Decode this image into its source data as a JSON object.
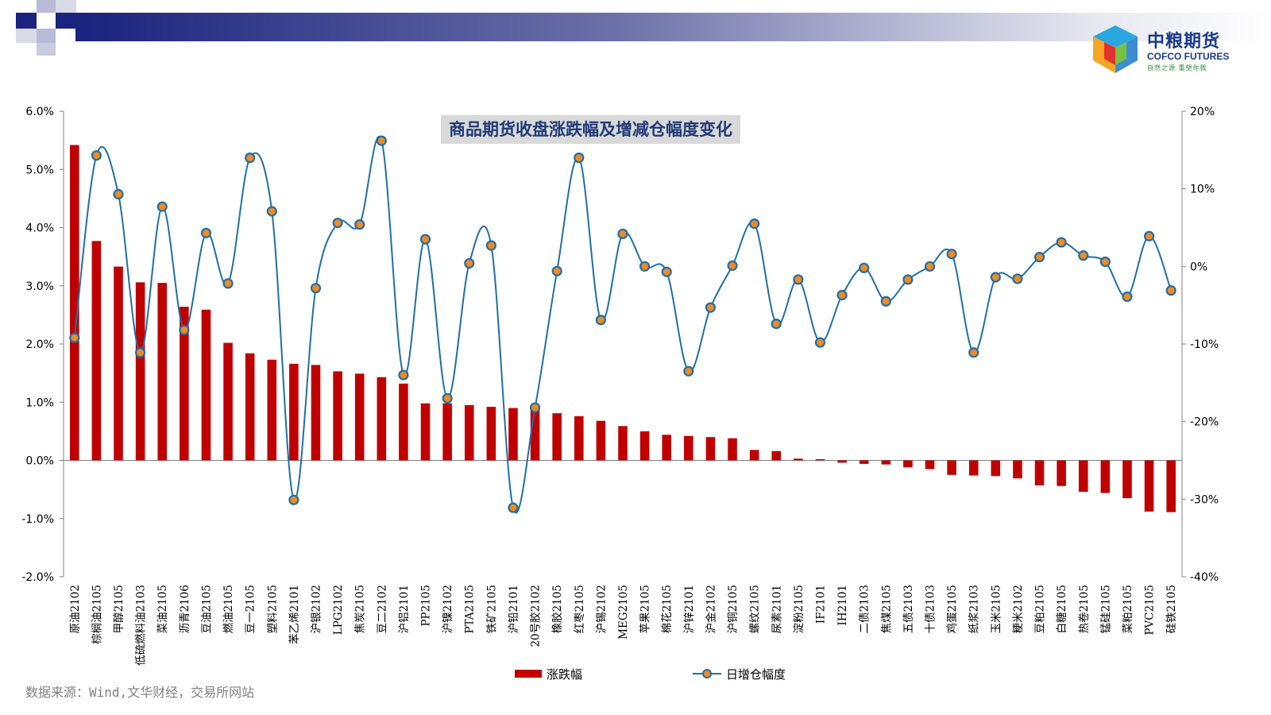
{
  "brand": {
    "name_cn": "中粮期货",
    "name_en": "COFCO FUTURES",
    "slogan": "自然之源 重塑你我"
  },
  "source_text": "数据来源：Wind,文华财经，交易所网站",
  "colors": {
    "bar": "#c00000",
    "line": "#1f6fa8",
    "marker_fill": "#f08a24",
    "marker_stroke": "#1f6fa8",
    "title_text": "#1f3a78",
    "banner_dark": "#1a237e"
  },
  "chart_data": {
    "type": "bar",
    "title": "商品期货收盘涨跌幅及增减仓幅度变化",
    "categories": [
      "原油2102",
      "棕榈油2105",
      "甲醇2105",
      "低硫燃料油2103",
      "菜油2105",
      "沥青2106",
      "豆油2105",
      "燃油2105",
      "豆一2105",
      "塑料2105",
      "苯乙烯2101",
      "沪银2102",
      "LPG2102",
      "焦炭2105",
      "豆二2102",
      "沪铝2101",
      "PP2105",
      "沪镍2102",
      "PTA2105",
      "铁矿2105",
      "沪铅2101",
      "20号胶2102",
      "橡胶2105",
      "红枣2105",
      "沪锡2102",
      "MEG2105",
      "苹果2105",
      "棉花2105",
      "沪锌2101",
      "沪金2102",
      "沪铜2105",
      "螺纹2105",
      "尿素2101",
      "淀粉2105",
      "IF2101",
      "IH2101",
      "二债2103",
      "焦煤2105",
      "五债2103",
      "十债2103",
      "鸡蛋2105",
      "纸浆2103",
      "玉米2105",
      "粳米2102",
      "豆粕2105",
      "白糖2105",
      "热卷2105",
      "锰硅2105",
      "菜粕2105",
      "PVC2105",
      "硅铁2105"
    ],
    "series": [
      {
        "name": "涨跌幅",
        "type": "bar",
        "axis": "left",
        "values": [
          5.42,
          3.77,
          3.33,
          3.06,
          3.05,
          2.64,
          2.59,
          2.02,
          1.84,
          1.73,
          1.66,
          1.64,
          1.53,
          1.49,
          1.43,
          1.32,
          0.98,
          0.98,
          0.95,
          0.92,
          0.9,
          0.89,
          0.81,
          0.76,
          0.68,
          0.59,
          0.5,
          0.44,
          0.42,
          0.4,
          0.38,
          0.18,
          0.16,
          0.03,
          0.02,
          -0.04,
          -0.06,
          -0.07,
          -0.12,
          -0.15,
          -0.25,
          -0.26,
          -0.27,
          -0.31,
          -0.43,
          -0.44,
          -0.54,
          -0.56,
          -0.65,
          -0.88,
          -0.89
        ]
      },
      {
        "name": "日增仓幅度",
        "type": "line",
        "axis": "right",
        "values": [
          -9.2,
          14.3,
          9.3,
          -11.1,
          7.7,
          -8.2,
          4.3,
          -2.2,
          14.0,
          7.1,
          -30.1,
          -2.8,
          5.6,
          5.4,
          16.2,
          -14.0,
          3.5,
          -17.0,
          0.4,
          2.7,
          -31.1,
          -18.2,
          -0.6,
          14.0,
          -6.9,
          4.2,
          0.0,
          -0.7,
          -13.5,
          -5.3,
          0.1,
          5.5,
          -7.4,
          -1.7,
          -9.8,
          -3.7,
          -0.2,
          -4.5,
          -1.7,
          0.0,
          1.6,
          -11.1,
          -1.4,
          -1.6,
          1.2,
          3.1,
          1.4,
          0.6,
          -3.9,
          3.9,
          -3.1
        ]
      }
    ],
    "y_left": {
      "min": -2.0,
      "max": 6.0,
      "ticks": [
        "-2.0%",
        "-1.0%",
        "0.0%",
        "1.0%",
        "2.0%",
        "3.0%",
        "4.0%",
        "5.0%",
        "6.0%"
      ]
    },
    "y_right": {
      "min": -40,
      "max": 20,
      "ticks": [
        "-40%",
        "-30%",
        "-20%",
        "-10%",
        "0%",
        "10%",
        "20%"
      ]
    },
    "grid": false,
    "legend_position": "bottom"
  }
}
